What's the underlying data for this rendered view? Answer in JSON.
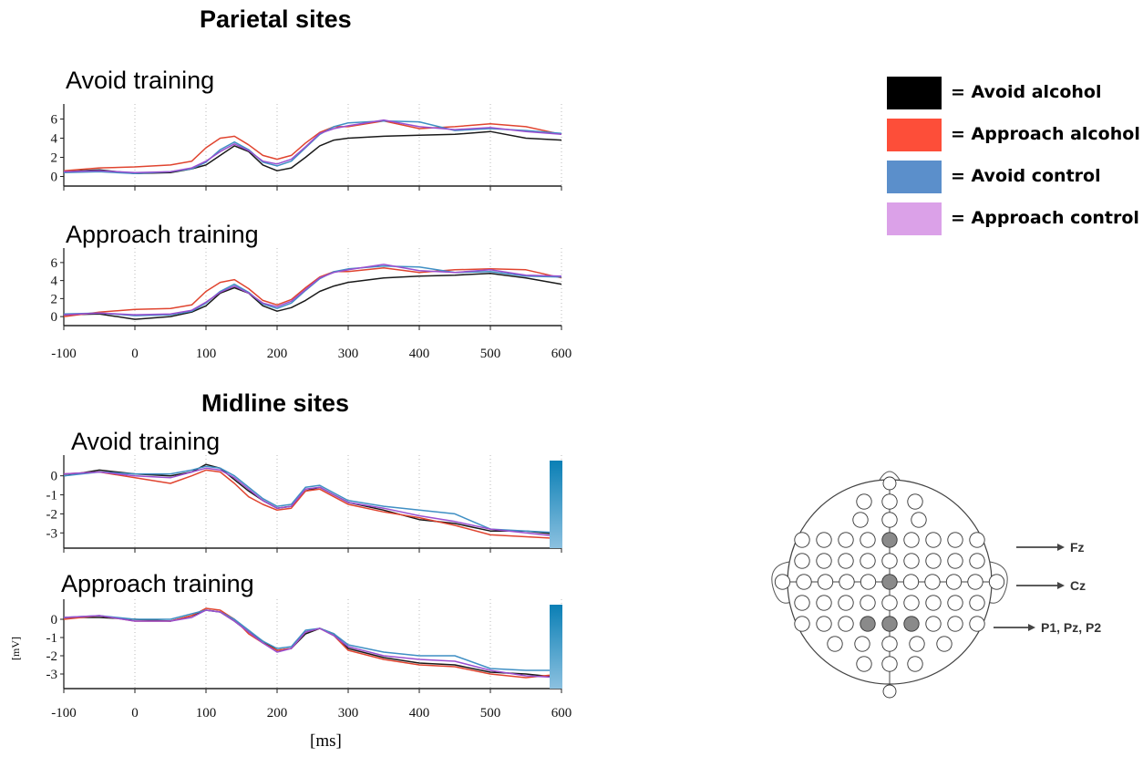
{
  "sections": [
    {
      "id": "parietal",
      "title": "Parietal sites"
    },
    {
      "id": "midline",
      "title": "Midline sites"
    }
  ],
  "axis": {
    "xlabel": "[ms]",
    "ylabel": "[mV]"
  },
  "legend": [
    {
      "label": "= Avoid alcohol",
      "color": "#000000"
    },
    {
      "label": "= Approach alcohol",
      "color": "#fd4e39"
    },
    {
      "label": "= Avoid control",
      "color": "#5b8fcb"
    },
    {
      "label": "= Approach control",
      "color": "#dba1e8"
    }
  ],
  "head_map": {
    "labels": [
      {
        "text": "Fz",
        "electrode": "Fz"
      },
      {
        "text": "Cz",
        "electrode": "Cz"
      },
      {
        "text": "P1, Pz, P2",
        "electrode": "Pz"
      }
    ],
    "highlighted": [
      "Fz",
      "Cz",
      "P1",
      "Pz",
      "P2"
    ]
  },
  "line_colors": {
    "avoid_alcohol": "#1a1a1a",
    "approach_alcohol": "#e0442f",
    "avoid_control": "#3f8fc4",
    "approach_control": "#9a4fcf"
  },
  "chart_data": [
    {
      "type": "line",
      "panel": "Parietal sites",
      "title": "Avoid training",
      "x_ticks": [
        -100,
        0,
        100,
        200,
        300,
        400,
        500,
        600
      ],
      "y_ticks": [
        0,
        2,
        4,
        6
      ],
      "xlim": [
        -100,
        600
      ],
      "ylim": [
        -1,
        7
      ],
      "show_x_ticklabels": false,
      "series": [
        {
          "key": "avoid_alcohol",
          "x": [
            -100,
            -50,
            0,
            50,
            80,
            100,
            120,
            140,
            160,
            180,
            200,
            220,
            240,
            260,
            280,
            300,
            350,
            400,
            450,
            500,
            550,
            600
          ],
          "values": [
            0.5,
            0.7,
            0.3,
            0.4,
            0.8,
            1.2,
            2.2,
            3.2,
            2.6,
            1.2,
            0.6,
            0.9,
            2.0,
            3.2,
            3.8,
            4.0,
            4.2,
            4.3,
            4.4,
            4.7,
            4.0,
            3.8
          ]
        },
        {
          "key": "approach_alcohol",
          "x": [
            -100,
            -50,
            0,
            50,
            80,
            100,
            120,
            140,
            160,
            180,
            200,
            220,
            240,
            260,
            280,
            300,
            350,
            400,
            450,
            500,
            550,
            600
          ],
          "values": [
            0.6,
            0.9,
            1.0,
            1.2,
            1.6,
            3.0,
            4.0,
            4.2,
            3.3,
            2.2,
            1.8,
            2.2,
            3.5,
            4.6,
            5.2,
            5.2,
            5.8,
            5.0,
            5.2,
            5.5,
            5.2,
            4.4
          ]
        },
        {
          "key": "avoid_control",
          "x": [
            -100,
            -50,
            0,
            50,
            80,
            100,
            120,
            140,
            160,
            180,
            200,
            220,
            240,
            260,
            280,
            300,
            350,
            400,
            450,
            500,
            550,
            600
          ],
          "values": [
            0.4,
            0.5,
            0.3,
            0.5,
            0.8,
            1.5,
            2.8,
            3.6,
            2.8,
            1.5,
            1.1,
            1.6,
            3.0,
            4.4,
            5.2,
            5.6,
            5.8,
            5.7,
            4.8,
            5.0,
            4.8,
            4.5
          ]
        },
        {
          "key": "approach_control",
          "x": [
            -100,
            -50,
            0,
            50,
            80,
            100,
            120,
            140,
            160,
            180,
            200,
            220,
            240,
            260,
            280,
            300,
            350,
            400,
            450,
            500,
            550,
            600
          ],
          "values": [
            0.5,
            0.6,
            0.4,
            0.5,
            0.9,
            1.6,
            2.6,
            3.4,
            2.7,
            1.6,
            1.3,
            1.8,
            3.1,
            4.5,
            5.0,
            5.3,
            5.9,
            5.2,
            4.9,
            5.1,
            4.7,
            4.4
          ]
        }
      ]
    },
    {
      "type": "line",
      "panel": "Parietal sites",
      "title": "Approach training",
      "x_ticks": [
        -100,
        0,
        100,
        200,
        300,
        400,
        500,
        600
      ],
      "y_ticks": [
        0,
        2,
        4,
        6
      ],
      "xlim": [
        -100,
        600
      ],
      "ylim": [
        -1,
        7
      ],
      "show_x_ticklabels": true,
      "series": [
        {
          "key": "avoid_alcohol",
          "x": [
            -100,
            -50,
            0,
            50,
            80,
            100,
            120,
            140,
            160,
            180,
            200,
            220,
            240,
            260,
            280,
            300,
            350,
            400,
            450,
            500,
            550,
            600
          ],
          "values": [
            0.2,
            0.3,
            -0.3,
            0.0,
            0.5,
            1.2,
            2.6,
            3.2,
            2.6,
            1.2,
            0.6,
            1.0,
            1.8,
            2.8,
            3.4,
            3.8,
            4.3,
            4.5,
            4.6,
            4.8,
            4.3,
            3.6
          ]
        },
        {
          "key": "approach_alcohol",
          "x": [
            -100,
            -50,
            0,
            50,
            80,
            100,
            120,
            140,
            160,
            180,
            200,
            220,
            240,
            260,
            280,
            300,
            350,
            400,
            450,
            500,
            550,
            600
          ],
          "values": [
            0.0,
            0.5,
            0.8,
            0.9,
            1.3,
            2.8,
            3.8,
            4.1,
            3.1,
            1.8,
            1.3,
            1.9,
            3.2,
            4.4,
            5.0,
            5.0,
            5.4,
            4.9,
            5.2,
            5.3,
            5.2,
            4.3
          ]
        },
        {
          "key": "avoid_control",
          "x": [
            -100,
            -50,
            0,
            50,
            80,
            100,
            120,
            140,
            160,
            180,
            200,
            220,
            240,
            260,
            280,
            300,
            350,
            400,
            450,
            500,
            550,
            600
          ],
          "values": [
            0.3,
            0.4,
            0.1,
            0.2,
            0.6,
            1.5,
            2.8,
            3.6,
            2.7,
            1.4,
            0.9,
            1.5,
            2.9,
            4.2,
            5.0,
            5.3,
            5.6,
            5.5,
            4.9,
            5.0,
            4.5,
            4.4
          ]
        },
        {
          "key": "approach_control",
          "x": [
            -100,
            -50,
            0,
            50,
            80,
            100,
            120,
            140,
            160,
            180,
            200,
            220,
            240,
            260,
            280,
            300,
            350,
            400,
            450,
            500,
            550,
            600
          ],
          "values": [
            0.2,
            0.4,
            0.2,
            0.3,
            0.7,
            1.6,
            2.7,
            3.4,
            2.6,
            1.5,
            1.1,
            1.7,
            3.0,
            4.3,
            4.9,
            5.2,
            5.8,
            5.1,
            4.9,
            5.2,
            4.6,
            4.5
          ]
        }
      ]
    },
    {
      "type": "line",
      "panel": "Midline sites",
      "title": "Avoid training",
      "x_ticks": [
        -100,
        0,
        100,
        200,
        300,
        400,
        500,
        600
      ],
      "y_ticks": [
        0,
        -1,
        -2,
        -3
      ],
      "xlim": [
        -100,
        600
      ],
      "ylim": [
        -3.8,
        0.8
      ],
      "show_x_ticklabels": false,
      "series": [
        {
          "key": "avoid_alcohol",
          "x": [
            -100,
            -50,
            0,
            50,
            80,
            100,
            120,
            140,
            160,
            180,
            200,
            220,
            240,
            260,
            280,
            300,
            350,
            400,
            450,
            500,
            550,
            600
          ],
          "values": [
            0.0,
            0.3,
            0.1,
            0.0,
            0.2,
            0.6,
            0.4,
            -0.2,
            -0.8,
            -1.3,
            -1.7,
            -1.6,
            -0.8,
            -0.6,
            -1.0,
            -1.4,
            -1.8,
            -2.3,
            -2.5,
            -2.9,
            -2.9,
            -3.1
          ]
        },
        {
          "key": "approach_alcohol",
          "x": [
            -100,
            -50,
            0,
            50,
            80,
            100,
            120,
            140,
            160,
            180,
            200,
            220,
            240,
            260,
            280,
            300,
            350,
            400,
            450,
            500,
            550,
            600
          ],
          "values": [
            0.1,
            0.2,
            -0.1,
            -0.4,
            0.0,
            0.3,
            0.2,
            -0.4,
            -1.1,
            -1.5,
            -1.8,
            -1.7,
            -0.8,
            -0.7,
            -1.1,
            -1.5,
            -1.9,
            -2.2,
            -2.6,
            -3.1,
            -3.2,
            -3.3
          ]
        },
        {
          "key": "avoid_control",
          "x": [
            -100,
            -50,
            0,
            50,
            80,
            100,
            120,
            140,
            160,
            180,
            200,
            220,
            240,
            260,
            280,
            300,
            350,
            400,
            450,
            500,
            550,
            600
          ],
          "values": [
            0.0,
            0.2,
            0.1,
            0.1,
            0.3,
            0.5,
            0.4,
            0.0,
            -0.6,
            -1.2,
            -1.6,
            -1.5,
            -0.6,
            -0.5,
            -0.9,
            -1.3,
            -1.6,
            -1.8,
            -2.0,
            -2.8,
            -2.9,
            -3.0
          ]
        },
        {
          "key": "approach_control",
          "x": [
            -100,
            -50,
            0,
            50,
            80,
            100,
            120,
            140,
            160,
            180,
            200,
            220,
            240,
            260,
            280,
            300,
            350,
            400,
            450,
            500,
            550,
            600
          ],
          "values": [
            0.1,
            0.2,
            0.0,
            -0.1,
            0.2,
            0.4,
            0.3,
            -0.1,
            -0.7,
            -1.3,
            -1.7,
            -1.6,
            -0.7,
            -0.6,
            -1.0,
            -1.4,
            -1.7,
            -2.1,
            -2.4,
            -2.8,
            -3.0,
            -3.2
          ]
        }
      ]
    },
    {
      "type": "line",
      "panel": "Midline sites",
      "title": "Approach training",
      "x_ticks": [
        -100,
        0,
        100,
        200,
        300,
        400,
        500,
        600
      ],
      "y_ticks": [
        0,
        -1,
        -2,
        -3
      ],
      "xlim": [
        -100,
        600
      ],
      "ylim": [
        -3.8,
        0.8
      ],
      "show_x_ticklabels": true,
      "series": [
        {
          "key": "avoid_alcohol",
          "x": [
            -100,
            -50,
            0,
            50,
            80,
            100,
            120,
            140,
            160,
            180,
            200,
            220,
            240,
            260,
            280,
            300,
            350,
            400,
            450,
            500,
            550,
            600
          ],
          "values": [
            0.1,
            0.1,
            0.0,
            -0.1,
            0.2,
            0.5,
            0.4,
            -0.1,
            -0.7,
            -1.2,
            -1.7,
            -1.6,
            -0.8,
            -0.5,
            -0.8,
            -1.6,
            -2.1,
            -2.4,
            -2.5,
            -2.9,
            -3.0,
            -3.2
          ]
        },
        {
          "key": "approach_alcohol",
          "x": [
            -100,
            -50,
            0,
            50,
            80,
            100,
            120,
            140,
            160,
            180,
            200,
            220,
            240,
            260,
            280,
            300,
            350,
            400,
            450,
            500,
            550,
            600
          ],
          "values": [
            0.0,
            0.2,
            -0.1,
            -0.1,
            0.2,
            0.6,
            0.5,
            0.0,
            -0.8,
            -1.3,
            -1.7,
            -1.6,
            -0.7,
            -0.5,
            -0.9,
            -1.7,
            -2.2,
            -2.5,
            -2.6,
            -3.0,
            -3.2,
            -3.0
          ]
        },
        {
          "key": "avoid_control",
          "x": [
            -100,
            -50,
            0,
            50,
            80,
            100,
            120,
            140,
            160,
            180,
            200,
            220,
            240,
            260,
            280,
            300,
            350,
            400,
            450,
            500,
            550,
            600
          ],
          "values": [
            0.1,
            0.2,
            0.0,
            0.0,
            0.3,
            0.5,
            0.4,
            0.0,
            -0.6,
            -1.2,
            -1.6,
            -1.5,
            -0.6,
            -0.5,
            -0.8,
            -1.4,
            -1.8,
            -2.0,
            -2.0,
            -2.7,
            -2.8,
            -2.8
          ]
        },
        {
          "key": "approach_control",
          "x": [
            -100,
            -50,
            0,
            50,
            80,
            100,
            120,
            140,
            160,
            180,
            200,
            220,
            240,
            260,
            280,
            300,
            350,
            400,
            450,
            500,
            550,
            600
          ],
          "values": [
            0.1,
            0.2,
            -0.1,
            -0.1,
            0.1,
            0.5,
            0.4,
            -0.1,
            -0.7,
            -1.3,
            -1.8,
            -1.6,
            -0.7,
            -0.5,
            -0.9,
            -1.5,
            -2.0,
            -2.2,
            -2.3,
            -2.8,
            -3.1,
            -3.2
          ]
        }
      ]
    }
  ]
}
